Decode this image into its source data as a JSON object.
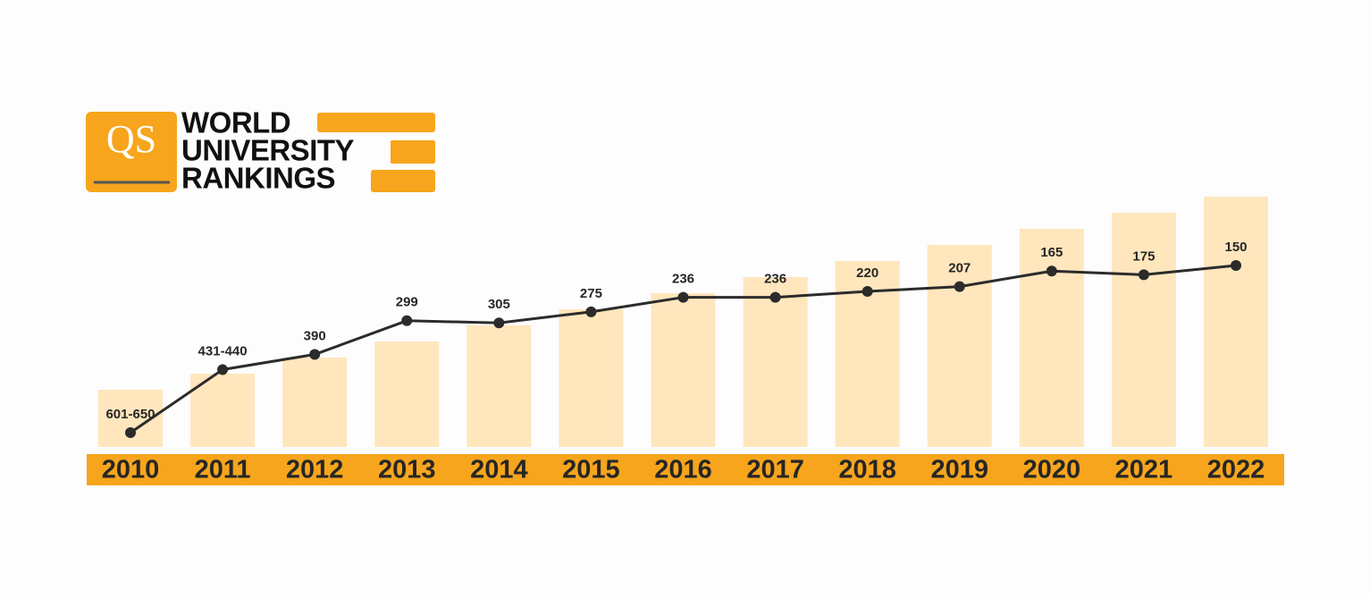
{
  "logo": {
    "mark": "QS",
    "lines": [
      "WORLD",
      "UNIVERSITY",
      "RANKINGS"
    ]
  },
  "chart_data": {
    "type": "bar_line",
    "categories": [
      "2010",
      "2011",
      "2012",
      "2013",
      "2014",
      "2015",
      "2016",
      "2017",
      "2018",
      "2019",
      "2020",
      "2021",
      "2022"
    ],
    "values": [
      601,
      431,
      390,
      299,
      305,
      275,
      236,
      236,
      220,
      207,
      165,
      175,
      150
    ],
    "value_labels": [
      "601-650",
      "431-440",
      "390",
      "299",
      "305",
      "275",
      "236",
      "236",
      "220",
      "207",
      "165",
      "175",
      "150"
    ],
    "color": "#ffe6bd",
    "line_color": "#2b2b2b",
    "band_color": "#f7a51c"
  }
}
